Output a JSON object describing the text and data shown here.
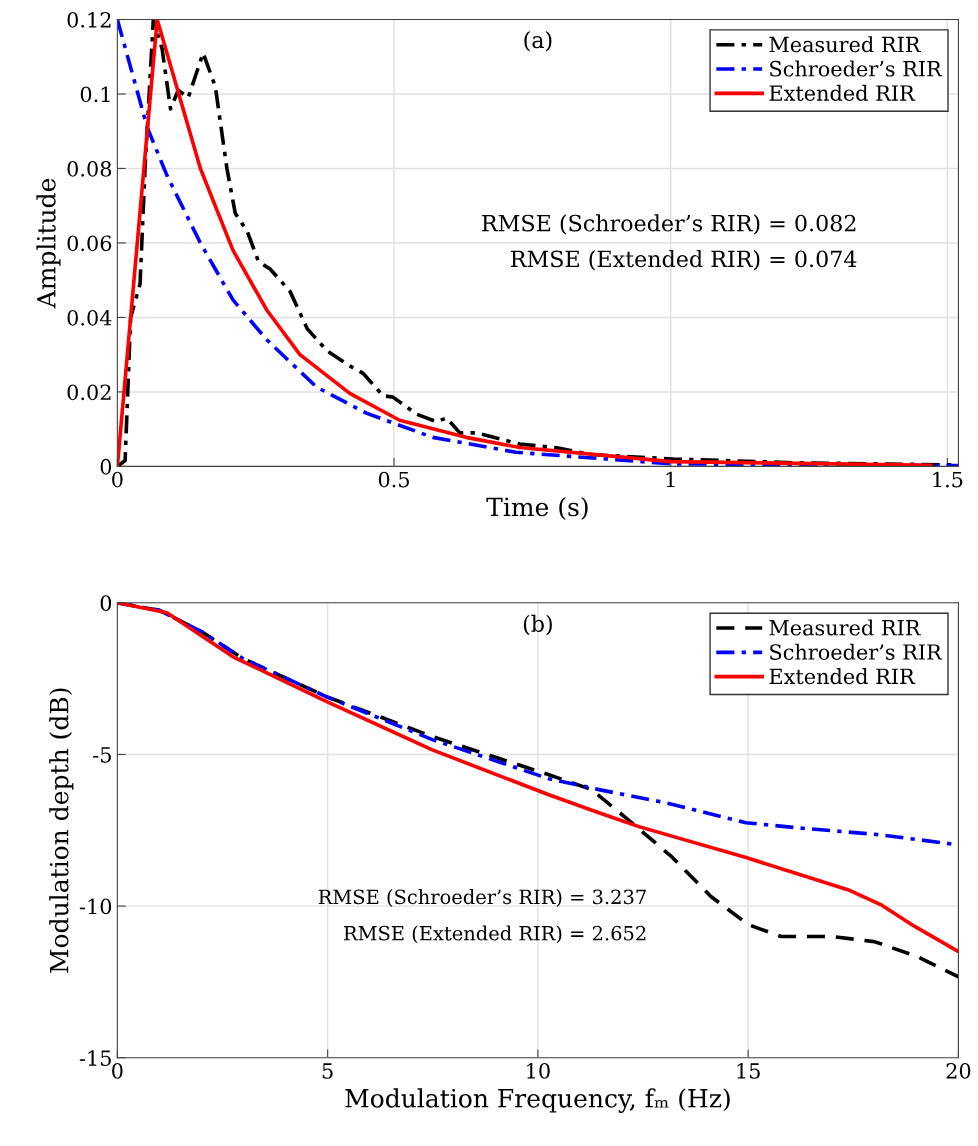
{
  "chart_data": [
    {
      "type": "line",
      "xlabel": "Time (s)",
      "ylabel": "Amplitude",
      "xlim": [
        0,
        1.52
      ],
      "ylim": [
        0,
        0.12
      ],
      "xticks": [
        0,
        0.5,
        1,
        1.5
      ],
      "yticks": [
        0,
        0.02,
        0.04,
        0.06,
        0.08,
        0.1,
        0.12
      ],
      "grid": true,
      "legend": "top right",
      "annotations": [
        "(a)",
        "RMSE (Schroeder’s RIR) = 0.082",
        "RMSE (Extended RIR) = 0.074"
      ],
      "series": [
        {
          "name": "Measured RIR",
          "color": "#000000",
          "line_style": "dashdot",
          "x": [
            0,
            0.014,
            0.024,
            0.041,
            0.05,
            0.065,
            0.081,
            0.096,
            0.11,
            0.128,
            0.155,
            0.177,
            0.198,
            0.213,
            0.235,
            0.255,
            0.276,
            0.312,
            0.343,
            0.379,
            0.42,
            0.444,
            0.48,
            0.498,
            0.541,
            0.577,
            0.595,
            0.619,
            0.65,
            0.727,
            0.794,
            0.855,
            1.005,
            1.22,
            1.51
          ],
          "values": [
            0,
            0.0016,
            0.04,
            0.049,
            0.08,
            0.12,
            0.112,
            0.096,
            0.101,
            0.099,
            0.111,
            0.102,
            0.08,
            0.068,
            0.063,
            0.055,
            0.053,
            0.047,
            0.037,
            0.031,
            0.027,
            0.025,
            0.019,
            0.0186,
            0.014,
            0.012,
            0.013,
            0.009,
            0.009,
            0.006,
            0.005,
            0.0032,
            0.002,
            0.001,
            0.0004
          ]
        },
        {
          "name": "Schroeder’s RIR",
          "color": "#0000ff",
          "line_style": "dashdot",
          "x": [
            0,
            0.054,
            0.09,
            0.15,
            0.209,
            0.27,
            0.36,
            0.45,
            0.57,
            0.72,
            1.0,
            1.52
          ],
          "values": [
            0.12,
            0.091,
            0.078,
            0.06,
            0.0447,
            0.034,
            0.0213,
            0.0143,
            0.0078,
            0.0038,
            0.0007,
            0.0002
          ]
        },
        {
          "name": "Extended RIR",
          "color": "#ff0000",
          "line_style": "solid",
          "x": [
            0,
            0.072,
            0.15,
            0.209,
            0.27,
            0.33,
            0.42,
            0.51,
            0.63,
            0.727,
            1.0,
            1.47
          ],
          "values": [
            0,
            0.12,
            0.08,
            0.058,
            0.042,
            0.03,
            0.0196,
            0.0124,
            0.0078,
            0.0051,
            0.0013,
            0.0003
          ]
        }
      ]
    },
    {
      "type": "line",
      "xlabel": "Modulation Frequency, fₘ (Hz)",
      "ylabel": "Modulation depth (dB)",
      "xlim": [
        0,
        20
      ],
      "ylim": [
        -15,
        0
      ],
      "xticks": [
        0,
        5,
        10,
        15,
        20
      ],
      "yticks": [
        -15,
        -10,
        -5,
        0
      ],
      "grid": true,
      "legend": "top right",
      "annotations": [
        "(b)",
        "RMSE (Schroeder’s RIR) = 3.237",
        "RMSE (Extended RIR) = 2.652"
      ],
      "series": [
        {
          "name": "Measured RIR",
          "color": "#000000",
          "line_style": "dashed",
          "x": [
            0,
            1,
            2,
            3,
            4.98,
            7.49,
            10.26,
            11.28,
            12.23,
            13.18,
            14.12,
            15.0,
            15.78,
            16.97,
            18.0,
            19.03,
            20
          ],
          "values": [
            0,
            -0.25,
            -0.95,
            -1.85,
            -3.1,
            -4.41,
            -5.67,
            -6.16,
            -7.25,
            -8.37,
            -9.69,
            -10.61,
            -11.0,
            -11.0,
            -11.17,
            -11.67,
            -12.33
          ]
        },
        {
          "name": "Schroeder’s RIR",
          "color": "#0000ff",
          "line_style": "dashdot",
          "x": [
            0,
            1,
            2,
            3,
            4.98,
            7.49,
            10.26,
            11.45,
            13.03,
            14.95,
            16.18,
            18.15,
            20
          ],
          "values": [
            0,
            -0.25,
            -0.95,
            -1.85,
            -3.1,
            -4.51,
            -5.8,
            -6.16,
            -6.59,
            -7.25,
            -7.42,
            -7.65,
            -7.98
          ]
        },
        {
          "name": "Extended RIR",
          "color": "#ff0000",
          "line_style": "solid",
          "x": [
            0,
            1.18,
            2.75,
            4.98,
            7.49,
            10.26,
            11.45,
            12.4,
            14.95,
            17.37,
            18.15,
            18.96,
            20
          ],
          "values": [
            0,
            -0.33,
            -1.78,
            -3.26,
            -4.85,
            -6.33,
            -6.92,
            -7.38,
            -8.4,
            -9.46,
            -9.95,
            -10.67,
            -11.5
          ]
        }
      ]
    }
  ]
}
